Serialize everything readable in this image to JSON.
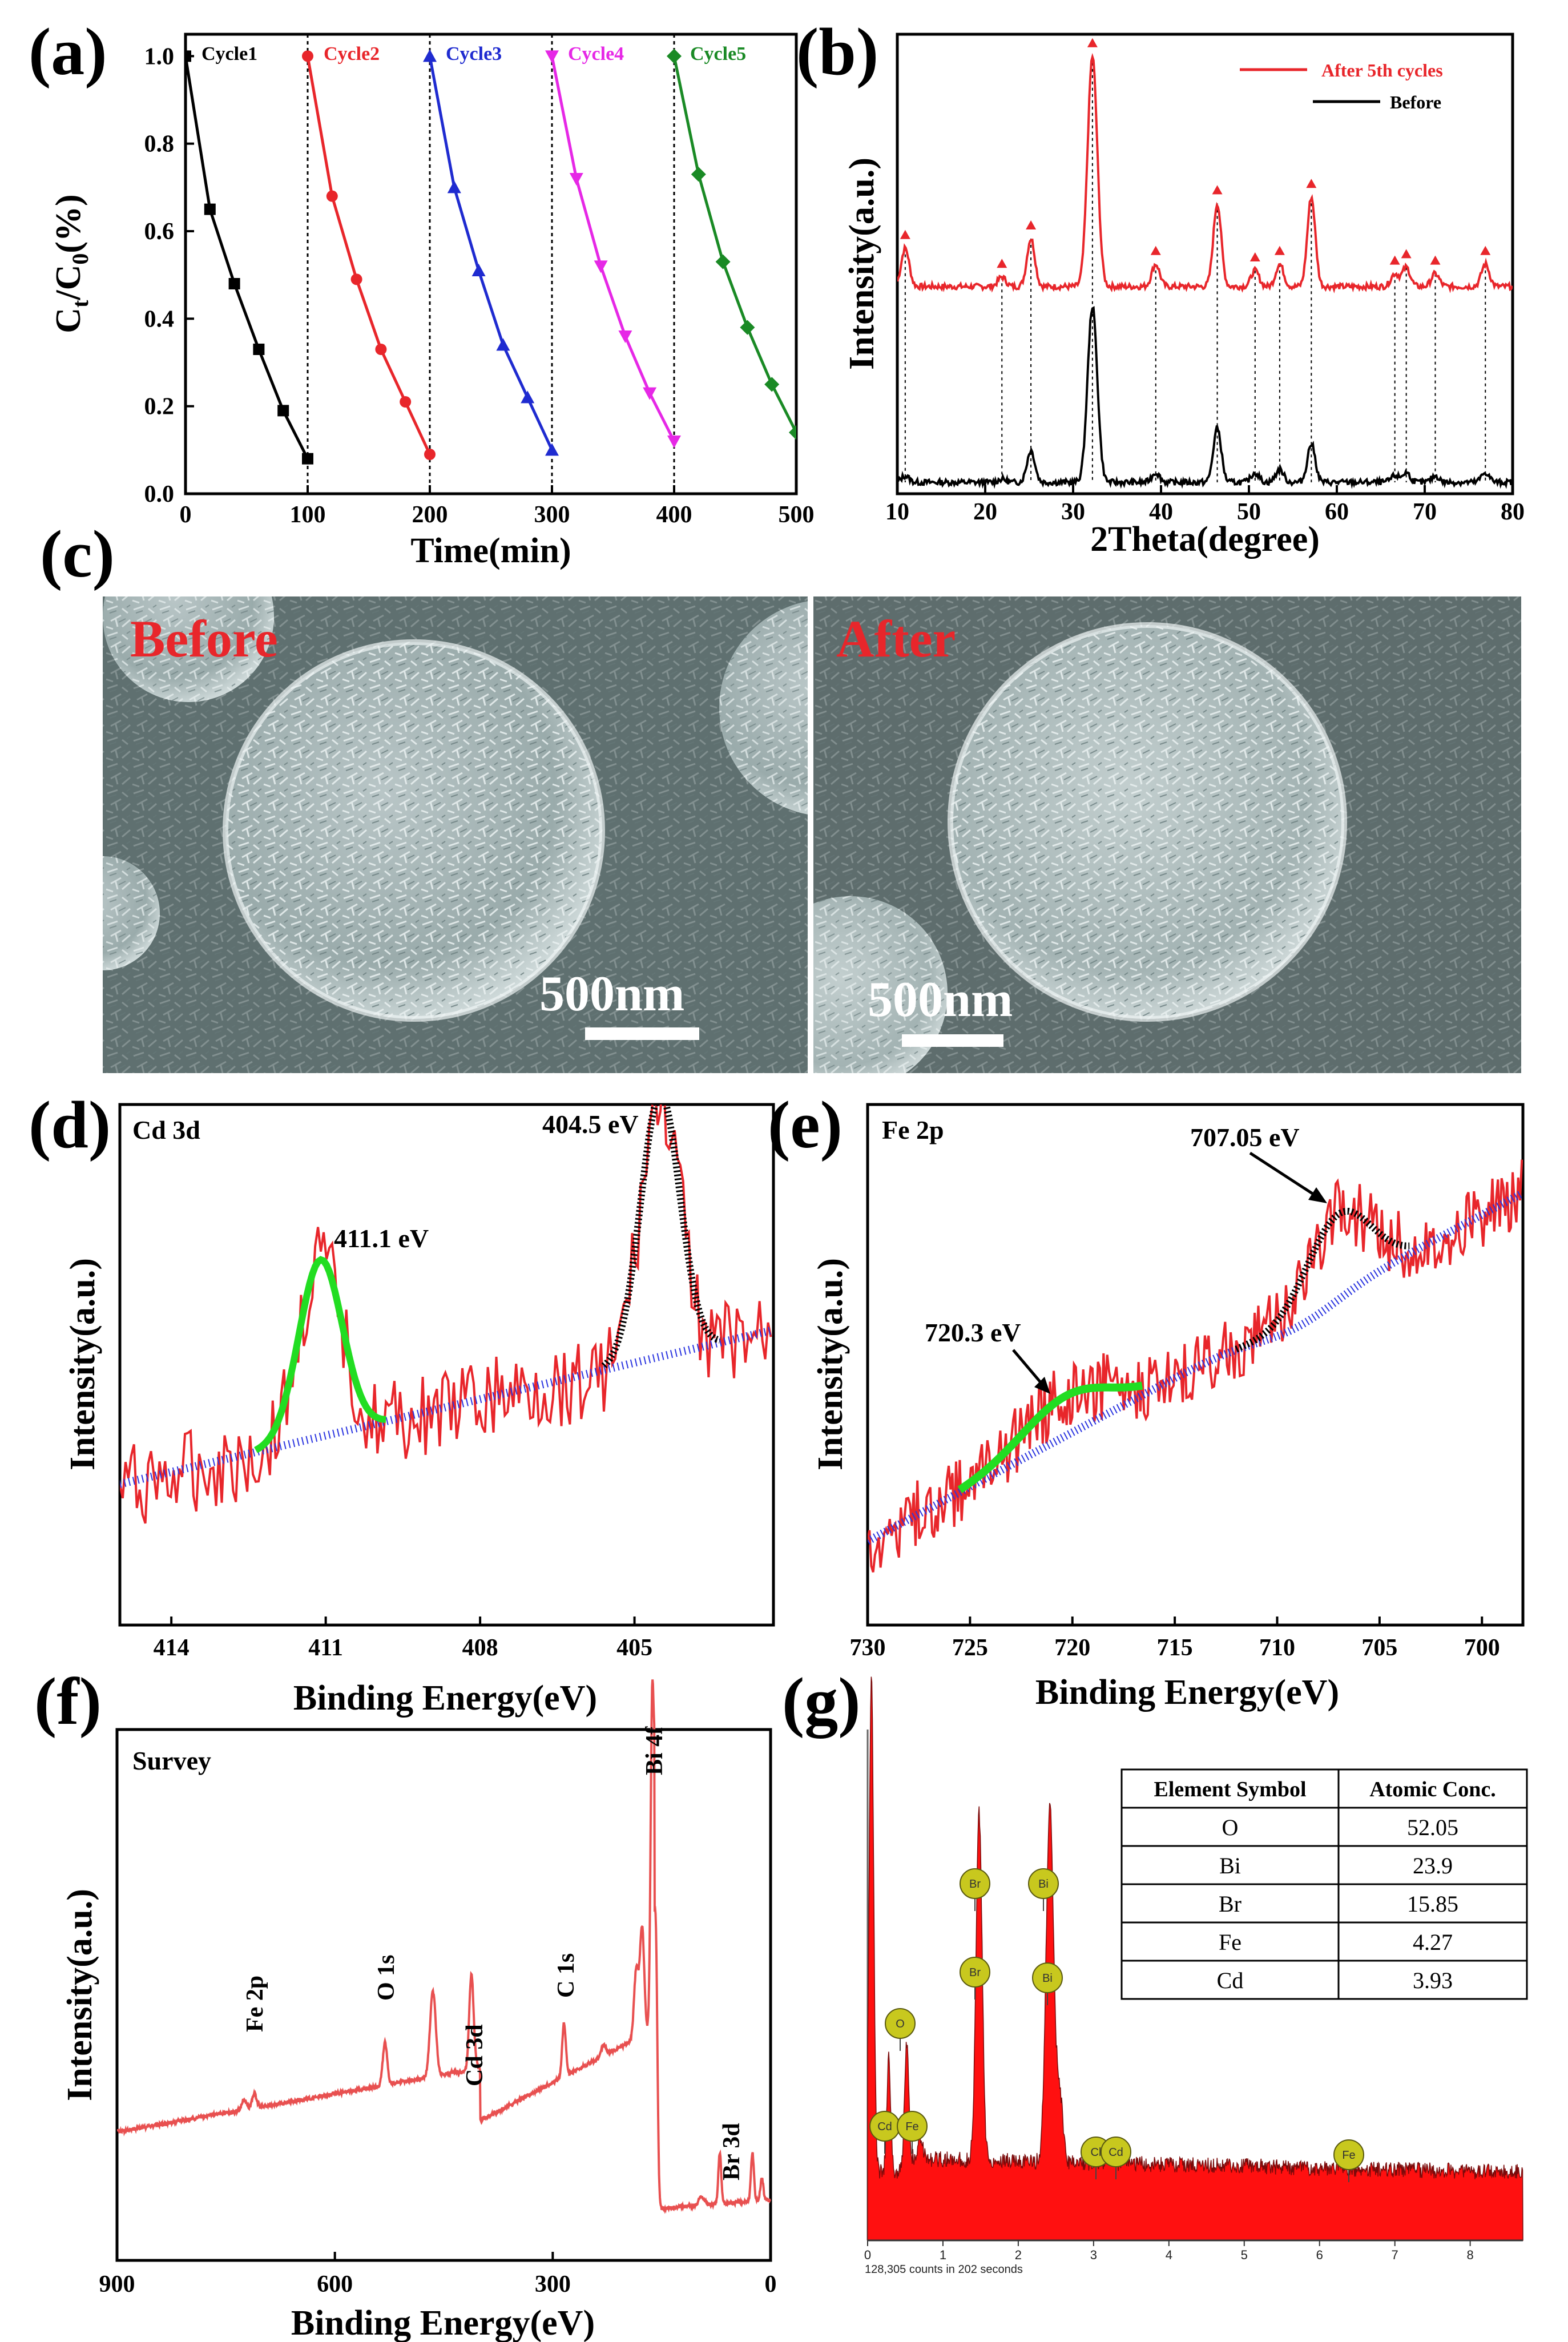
{
  "panels": {
    "a": "(a)",
    "b": "(b)",
    "c": "(c)",
    "d": "(d)",
    "e": "(e)",
    "f": "(f)",
    "g": "(g)"
  },
  "colors": {
    "cycle1": "#000000",
    "cycle2": "#e8262b",
    "cycle3": "#1f2bd0",
    "cycle4": "#e628e6",
    "cycle5": "#1a8a25",
    "xrd_after": "#e8262b",
    "xps_raw": "#e8262b",
    "xps_fit_green": "#22dd22",
    "xps_fit_black": "#000000",
    "xps_bg": "#2b35e0",
    "survey": "#e85050",
    "eds": "#ff1010",
    "sem_text": "#e8262b"
  },
  "chart_data": [
    {
      "id": "a",
      "type": "line",
      "xlabel": "Time(min)",
      "ylabel": "Ct/C0(%)",
      "xlim": [
        0,
        500
      ],
      "ylim": [
        0,
        1.05
      ],
      "xticks": [
        "0",
        "100",
        "200",
        "300",
        "400",
        "500"
      ],
      "yticks": [
        "0.0",
        "0.2",
        "0.4",
        "0.6",
        "0.8",
        "1.0"
      ],
      "series": [
        {
          "name": "Cycle1",
          "marker": "square",
          "x": [
            0,
            20,
            40,
            60,
            80,
            100
          ],
          "y": [
            1.0,
            0.65,
            0.48,
            0.33,
            0.19,
            0.08
          ]
        },
        {
          "name": "Cycle2",
          "marker": "circle",
          "x": [
            100,
            120,
            140,
            160,
            180,
            200
          ],
          "y": [
            1.0,
            0.68,
            0.49,
            0.33,
            0.21,
            0.09
          ]
        },
        {
          "name": "Cycle3",
          "marker": "triangle-up",
          "x": [
            200,
            220,
            240,
            260,
            280,
            300
          ],
          "y": [
            1.0,
            0.7,
            0.51,
            0.34,
            0.22,
            0.1
          ]
        },
        {
          "name": "Cycle4",
          "marker": "triangle-down",
          "x": [
            300,
            320,
            340,
            360,
            380,
            400
          ],
          "y": [
            1.0,
            0.72,
            0.52,
            0.36,
            0.23,
            0.12
          ]
        },
        {
          "name": "Cycle5",
          "marker": "diamond",
          "x": [
            400,
            420,
            440,
            460,
            480,
            500
          ],
          "y": [
            1.0,
            0.73,
            0.53,
            0.38,
            0.25,
            0.14
          ]
        }
      ]
    },
    {
      "id": "b",
      "type": "line",
      "xlabel": "2Theta(degree)",
      "ylabel": "Intensity(a.u.)",
      "xlim": [
        10,
        80
      ],
      "xticks": [
        "10",
        "20",
        "30",
        "40",
        "50",
        "60",
        "70",
        "80"
      ],
      "legend": [
        "After 5th cycles",
        "Before"
      ],
      "peaks": [
        10.9,
        21.9,
        25.2,
        32.2,
        39.4,
        46.4,
        50.7,
        53.5,
        57.1,
        66.6,
        67.9,
        71.2,
        76.9
      ],
      "peak_heights_after": [
        0.12,
        0.03,
        0.15,
        0.72,
        0.07,
        0.26,
        0.05,
        0.07,
        0.28,
        0.04,
        0.06,
        0.04,
        0.07
      ],
      "peak_heights_before": [
        0.02,
        0.01,
        0.1,
        0.55,
        0.03,
        0.17,
        0.03,
        0.04,
        0.12,
        0.02,
        0.03,
        0.02,
        0.03
      ]
    },
    {
      "id": "d",
      "type": "line",
      "title": "Cd 3d",
      "xlabel": "Binding Energy(eV)",
      "ylabel": "Intensity(a.u.)",
      "xlim": [
        415,
        402.3
      ],
      "xticks": [
        "414",
        "411",
        "408",
        "405"
      ],
      "peaks": [
        {
          "center": 411.1,
          "label": "411.1 eV"
        },
        {
          "center": 404.5,
          "label": "404.5 eV"
        }
      ]
    },
    {
      "id": "e",
      "type": "line",
      "title": "Fe 2p",
      "xlabel": "Binding Energy(eV)",
      "ylabel": "Intensity(a.u.)",
      "xlim": [
        730,
        698
      ],
      "xticks": [
        "730",
        "725",
        "720",
        "715",
        "710",
        "705",
        "700"
      ],
      "peaks": [
        {
          "center": 720.3,
          "label": "720.3 eV"
        },
        {
          "center": 707.05,
          "label": "707.05 eV"
        }
      ]
    },
    {
      "id": "f",
      "type": "line",
      "title": "Survey",
      "xlabel": "Binding Energy(eV)",
      "ylabel": "Intensity(a.u.)",
      "xlim": [
        900,
        0
      ],
      "xticks": [
        "900",
        "600",
        "300",
        "0"
      ],
      "annotations": [
        "Fe 2p",
        "O 1s",
        "Cd 3d",
        "C 1s",
        "Bi 4f",
        "Br 3d"
      ]
    },
    {
      "id": "g",
      "type": "bar",
      "xlim": [
        0,
        8.7
      ],
      "xticks": [
        "0",
        "1",
        "2",
        "3",
        "4",
        "5",
        "6",
        "7",
        "8"
      ],
      "footer": "128,305 counts in 202 seconds",
      "badges": [
        "O",
        "Cd",
        "Fe",
        "Br",
        "Br",
        "Bi",
        "Bi",
        "Cl",
        "Cd",
        "Fe"
      ],
      "table": {
        "headers": [
          "Element Symbol",
          "Atomic Conc."
        ],
        "rows": [
          [
            "O",
            "52.05"
          ],
          [
            "Bi",
            "23.9"
          ],
          [
            "Br",
            "15.85"
          ],
          [
            "Fe",
            "4.27"
          ],
          [
            "Cd",
            "3.93"
          ]
        ]
      }
    }
  ],
  "sem": {
    "before": "Before",
    "after": "After",
    "scale": "500nm"
  }
}
